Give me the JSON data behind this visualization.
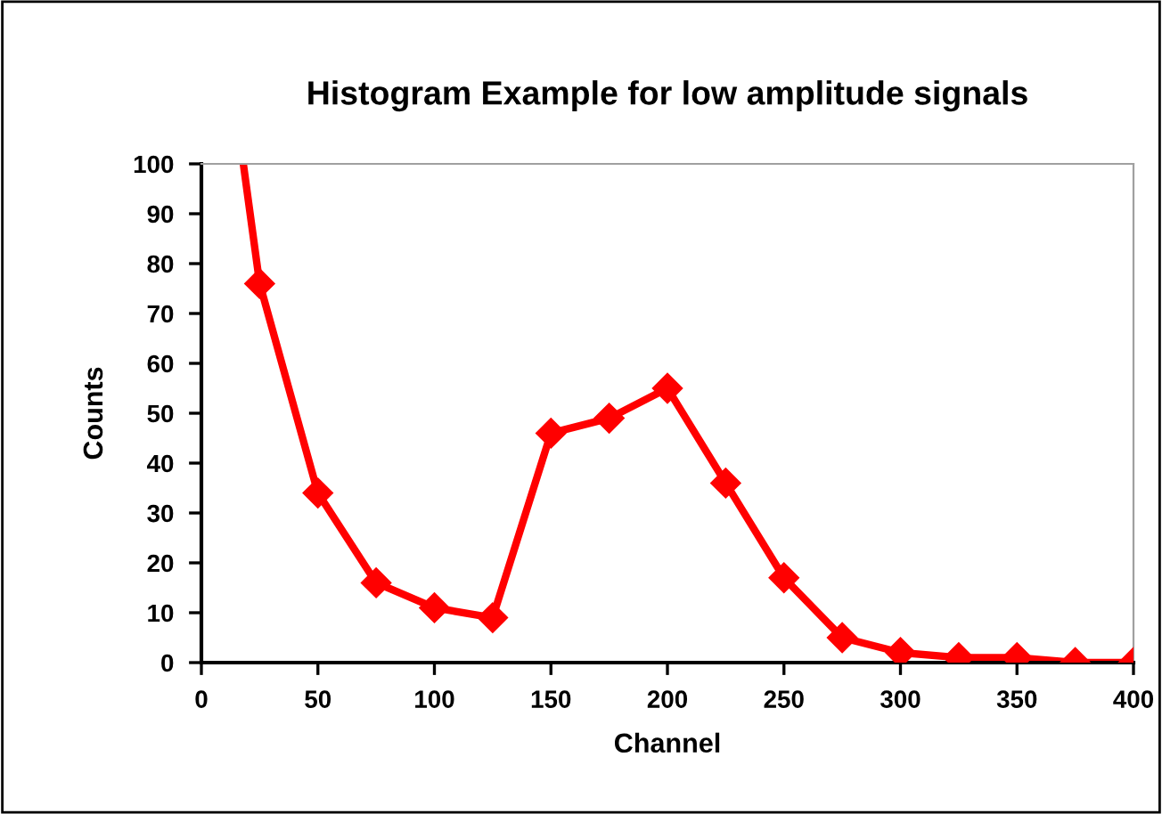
{
  "chart_data": {
    "type": "line",
    "title": "Histogram Example for low amplitude signals",
    "xlabel": "Channel",
    "ylabel": "Counts",
    "series": [
      {
        "color": "#ff0000",
        "marker": "diamond",
        "x": [
          25,
          50,
          75,
          100,
          125,
          150,
          175,
          200,
          225,
          250,
          275,
          300,
          325,
          350,
          375,
          400
        ],
        "values": [
          76,
          34,
          16,
          11,
          9,
          46,
          49,
          55,
          36,
          17,
          5,
          2,
          1,
          1,
          0,
          0
        ]
      },
      {
        "color": "#ff0000",
        "marker": "none",
        "x": [
          18,
          25
        ],
        "values": [
          100,
          76
        ]
      }
    ],
    "xlim": [
      0,
      400
    ],
    "xticks": [
      0,
      50,
      100,
      150,
      200,
      250,
      300,
      350,
      400
    ],
    "ylim": [
      0,
      100
    ],
    "yticks": [
      0,
      10,
      20,
      30,
      40,
      50,
      60,
      70,
      80,
      90,
      100
    ],
    "grid": false,
    "legend": false
  }
}
